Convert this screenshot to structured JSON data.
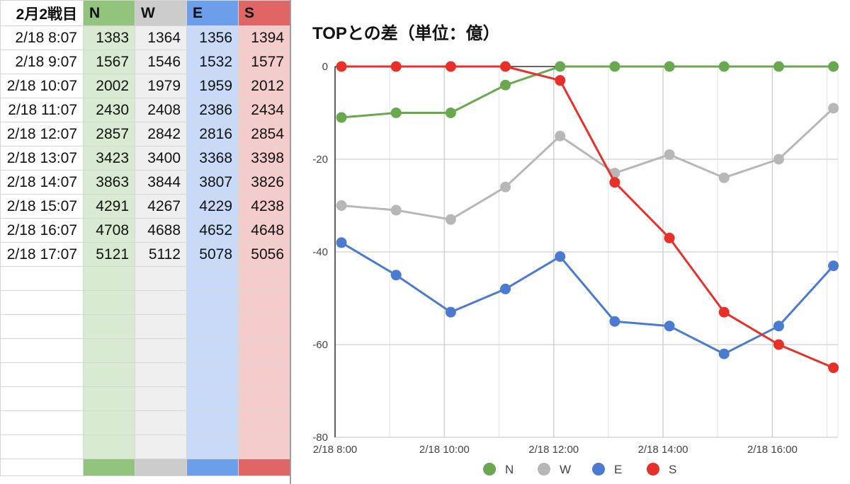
{
  "sheet": {
    "headers": [
      "2月2戦目",
      "N",
      "W",
      "E",
      "S"
    ],
    "header_colors": [
      "#ffffff",
      "#93c47d",
      "#cccccc",
      "#6d9eeb",
      "#e06666"
    ],
    "column_colors": [
      "#ffffff",
      "#d9ead3",
      "#efefef",
      "#c9daf8",
      "#f4cccc"
    ],
    "rows": [
      [
        "2/18 8:07",
        "1383",
        "1364",
        "1356",
        "1394"
      ],
      [
        "2/18 9:07",
        "1567",
        "1546",
        "1532",
        "1577"
      ],
      [
        "2/18 10:07",
        "2002",
        "1979",
        "1959",
        "2012"
      ],
      [
        "2/18 11:07",
        "2430",
        "2408",
        "2386",
        "2434"
      ],
      [
        "2/18 12:07",
        "2857",
        "2842",
        "2816",
        "2854"
      ],
      [
        "2/18 13:07",
        "3423",
        "3400",
        "3368",
        "3398"
      ],
      [
        "2/18 14:07",
        "3863",
        "3844",
        "3807",
        "3826"
      ],
      [
        "2/18 15:07",
        "4291",
        "4267",
        "4229",
        "4238"
      ],
      [
        "2/18 16:07",
        "4708",
        "4688",
        "4652",
        "4648"
      ],
      [
        "2/18 17:07",
        "5121",
        "5112",
        "5078",
        "5056"
      ]
    ],
    "empty_rows": 8
  },
  "chart_data": {
    "type": "line",
    "title": "TOPとの差（単位：億）",
    "x": [
      "2/18 8:07",
      "2/18 9:07",
      "2/18 10:07",
      "2/18 11:07",
      "2/18 12:07",
      "2/18 13:07",
      "2/18 14:07",
      "2/18 15:07",
      "2/18 16:07",
      "2/18 17:07"
    ],
    "x_hours": [
      8.117,
      9.117,
      10.117,
      11.117,
      12.117,
      13.117,
      14.117,
      15.117,
      16.117,
      17.117
    ],
    "xlim": [
      8,
      17.2
    ],
    "x_ticks": [
      {
        "value": 8,
        "label": "2/18 8:00"
      },
      {
        "value": 10,
        "label": "2/18 10:00"
      },
      {
        "value": 12,
        "label": "2/18 12:00"
      },
      {
        "value": 14,
        "label": "2/18 14:00"
      },
      {
        "value": 16,
        "label": "2/18 16:00"
      }
    ],
    "ylim": [
      -80,
      0
    ],
    "y_ticks": [
      0,
      -20,
      -40,
      -60,
      -80
    ],
    "grid": true,
    "legend": "bottom",
    "series": [
      {
        "name": "N",
        "color": "#6aa84f",
        "values": [
          -11,
          -10,
          -10,
          -4,
          0,
          0,
          0,
          0,
          0,
          0
        ]
      },
      {
        "name": "W",
        "color": "#b7b7b7",
        "values": [
          -30,
          -31,
          -33,
          -26,
          -15,
          -23,
          -19,
          -24,
          -20,
          -9
        ]
      },
      {
        "name": "E",
        "color": "#4a7bd0",
        "values": [
          -38,
          -45,
          -53,
          -48,
          -41,
          -55,
          -56,
          -62,
          -56,
          -43
        ]
      },
      {
        "name": "S",
        "color": "#e8302a",
        "values": [
          0,
          0,
          0,
          0,
          -3,
          -25,
          -37,
          -53,
          -60,
          -65
        ]
      }
    ]
  }
}
